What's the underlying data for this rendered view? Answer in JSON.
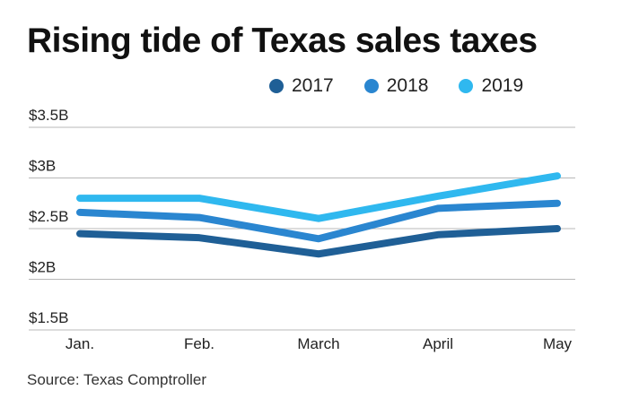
{
  "title": "Rising tide of Texas sales taxes",
  "source": "Source: Texas Comptroller",
  "chart_data": {
    "type": "line",
    "categories": [
      "Jan.",
      "Feb.",
      "March",
      "April",
      "May"
    ],
    "y_ticks": [
      1.5,
      2,
      2.5,
      3,
      3.5
    ],
    "y_tick_labels": [
      "$1.5B",
      "$2B",
      "$2.5B",
      "$3B",
      "$3.5B"
    ],
    "ylim": [
      1.5,
      3.5
    ],
    "grid": true,
    "legend_position": "top",
    "series": [
      {
        "name": "2017",
        "color": "#1f5f96",
        "values": [
          2.45,
          2.41,
          2.25,
          2.44,
          2.5
        ]
      },
      {
        "name": "2018",
        "color": "#2a86d0",
        "values": [
          2.66,
          2.61,
          2.4,
          2.7,
          2.75
        ]
      },
      {
        "name": "2019",
        "color": "#2fb8ef",
        "values": [
          2.8,
          2.8,
          2.6,
          2.82,
          3.02
        ]
      }
    ]
  }
}
